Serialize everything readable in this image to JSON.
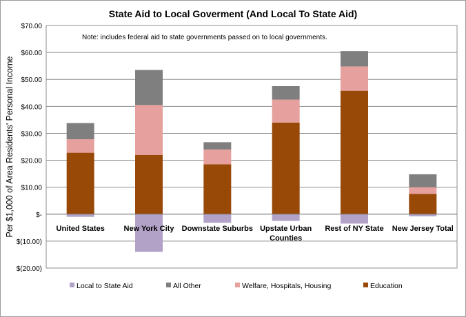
{
  "chart_data": {
    "type": "bar",
    "stacked": true,
    "title": "State Aid to Local Goverment (And Local To State Aid)",
    "ylabel": "Per $1,000 of Area Residents' Personal Income",
    "xlabel": "",
    "note": "Note:  includes federal aid to state governments passed on to local governments.",
    "ylim": [
      -20,
      70
    ],
    "ytick_labels": [
      "$70.00",
      "$60.00",
      "$50.00",
      "$40.00",
      "$30.00",
      "$20.00",
      "$10.00",
      "$-",
      "$(10.00)",
      "$(20.00)"
    ],
    "categories": [
      [
        "United States"
      ],
      [
        "New York City"
      ],
      [
        "Downstate Suburbs"
      ],
      [
        "Upstate Urban",
        "Counties"
      ],
      [
        "Rest of NY State"
      ],
      [
        "New Jersey Total"
      ]
    ],
    "series": [
      {
        "name": "Local to State Aid",
        "color": "#b3a2c7",
        "values": [
          -1.0,
          -14.0,
          -3.2,
          -2.5,
          -3.5,
          -0.8
        ]
      },
      {
        "name": "All Other",
        "color": "#7f7f7f",
        "values": [
          6.0,
          13.0,
          2.7,
          5.0,
          5.7,
          4.8
        ]
      },
      {
        "name": "Welfare, Hospitals, Housing",
        "color": "#e6a09e",
        "values": [
          5.0,
          18.5,
          5.5,
          8.5,
          9.0,
          2.5
        ]
      },
      {
        "name": "Education",
        "color": "#984807",
        "values": [
          22.8,
          22.0,
          18.5,
          34.0,
          45.8,
          7.5
        ]
      }
    ],
    "legend_order": [
      "Local to State Aid",
      "All Other",
      "Welfare, Hospitals, Housing",
      "Education"
    ],
    "legend_position": "bottom",
    "grid": true
  }
}
